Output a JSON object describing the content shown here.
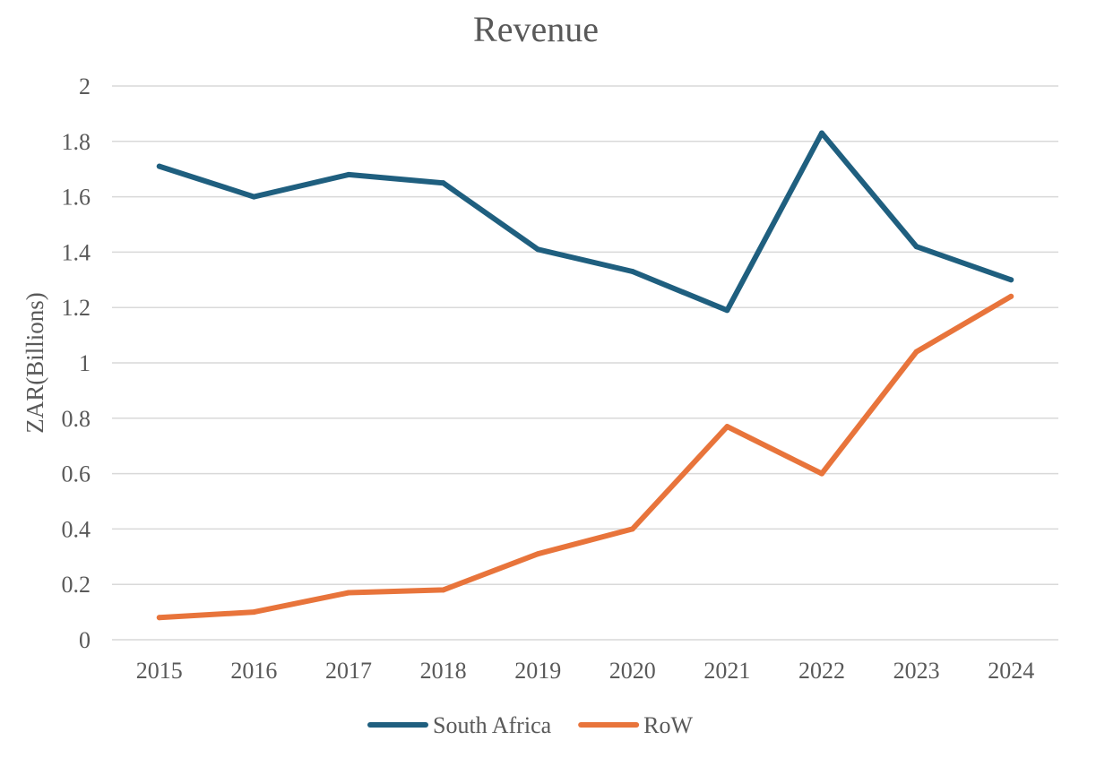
{
  "chart_data": {
    "type": "line",
    "title": "Revenue",
    "xlabel": "",
    "ylabel": "ZAR(Billions)",
    "categories": [
      "2015",
      "2016",
      "2017",
      "2018",
      "2019",
      "2020",
      "2021",
      "2022",
      "2023",
      "2024"
    ],
    "ylim": [
      0,
      2
    ],
    "yticks": [
      "0",
      "0.2",
      "0.4",
      "0.6",
      "0.8",
      "1",
      "1.2",
      "1.4",
      "1.6",
      "1.8",
      "2"
    ],
    "grid": true,
    "legend_position": "bottom",
    "series": [
      {
        "name": "South Africa",
        "color": "#1f5f7f",
        "values": [
          1.71,
          1.6,
          1.68,
          1.65,
          1.41,
          1.33,
          1.19,
          1.83,
          1.42,
          1.3
        ]
      },
      {
        "name": "RoW",
        "color": "#e8743b",
        "values": [
          0.08,
          0.1,
          0.17,
          0.18,
          0.31,
          0.4,
          0.77,
          0.6,
          1.04,
          1.24
        ]
      }
    ]
  }
}
